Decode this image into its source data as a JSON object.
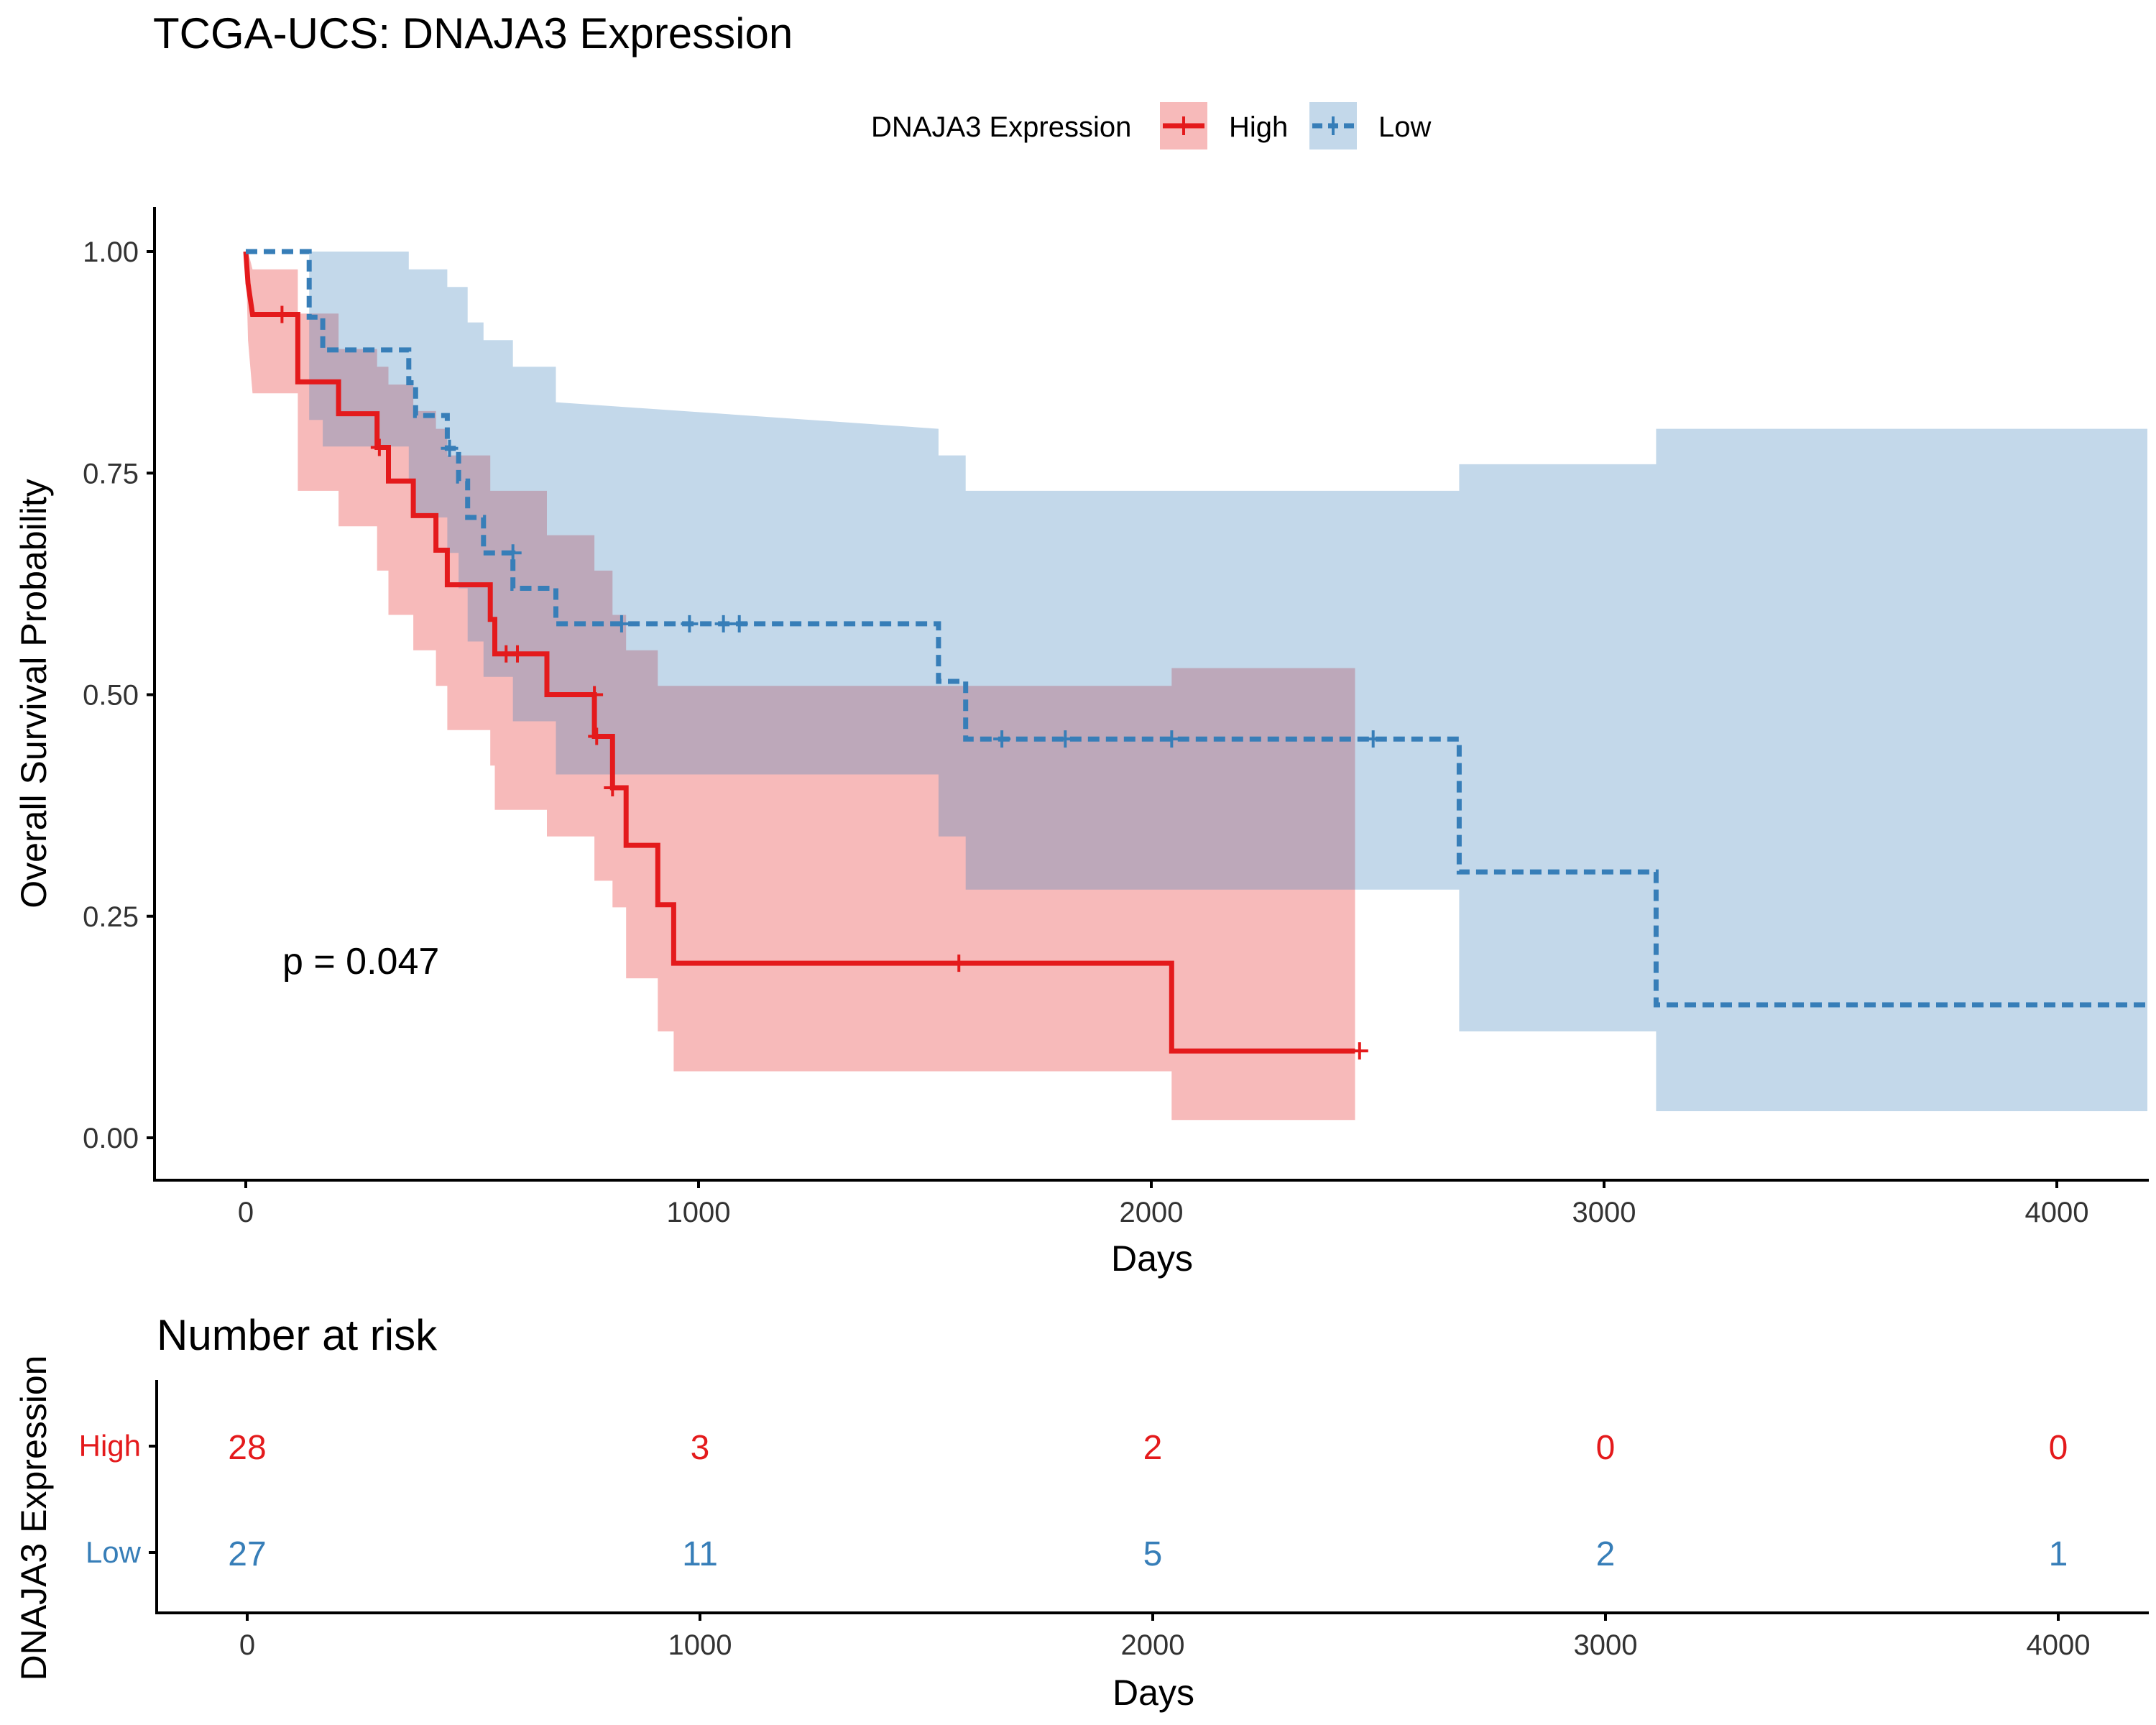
{
  "title": "TCGA-UCS: DNAJA3 Expression",
  "legend": {
    "title": "DNAJA3 Expression",
    "position": "top",
    "items": [
      {
        "label": "High",
        "color": "#e41a1c",
        "line": "solid"
      },
      {
        "label": "Low",
        "color": "#377eb8",
        "line": "dashed"
      }
    ]
  },
  "pvalue": "p = 0.047",
  "colors": {
    "high": "#e41a1c",
    "low": "#377eb8"
  },
  "chart_data": [
    {
      "type": "line",
      "subtype": "kaplan-meier",
      "xlabel": "Days",
      "ylabel": "Overall Survival Probability",
      "xlim": [
        -200,
        4200
      ],
      "ylim": [
        -0.05,
        1.05
      ],
      "x_ticks": [
        0,
        1000,
        2000,
        3000,
        4000
      ],
      "y_ticks": [
        0.0,
        0.25,
        0.5,
        0.75,
        1.0
      ],
      "y_tick_labels": [
        "0.00",
        "0.25",
        "0.50",
        "0.75",
        "1.00"
      ],
      "series": [
        {
          "name": "High",
          "color": "#e41a1c",
          "step": [
            [
              0,
              1.0
            ],
            [
              5,
              0.964
            ],
            [
              15,
              0.929
            ],
            [
              115,
              0.929
            ],
            [
              115,
              0.853
            ],
            [
              205,
              0.853
            ],
            [
              205,
              0.817
            ],
            [
              290,
              0.817
            ],
            [
              290,
              0.779
            ],
            [
              315,
              0.779
            ],
            [
              315,
              0.741
            ],
            [
              370,
              0.741
            ],
            [
              370,
              0.702
            ],
            [
              420,
              0.702
            ],
            [
              420,
              0.663
            ],
            [
              445,
              0.663
            ],
            [
              445,
              0.624
            ],
            [
              540,
              0.624
            ],
            [
              540,
              0.585
            ],
            [
              550,
              0.585
            ],
            [
              550,
              0.546
            ],
            [
              665,
              0.546
            ],
            [
              665,
              0.5
            ],
            [
              770,
              0.5
            ],
            [
              770,
              0.453
            ],
            [
              810,
              0.453
            ],
            [
              810,
              0.395
            ],
            [
              840,
              0.395
            ],
            [
              840,
              0.33
            ],
            [
              910,
              0.33
            ],
            [
              910,
              0.263
            ],
            [
              945,
              0.263
            ],
            [
              945,
              0.197
            ],
            [
              2045,
              0.197
            ],
            [
              2045,
              0.098
            ],
            [
              2450,
              0.098
            ]
          ],
          "upper": [
            [
              0,
              1.0
            ],
            [
              5,
              1.0
            ],
            [
              15,
              0.98
            ],
            [
              115,
              0.98
            ],
            [
              115,
              0.93
            ],
            [
              205,
              0.93
            ],
            [
              205,
              0.89
            ],
            [
              290,
              0.89
            ],
            [
              290,
              0.87
            ],
            [
              315,
              0.87
            ],
            [
              315,
              0.85
            ],
            [
              370,
              0.85
            ],
            [
              370,
              0.82
            ],
            [
              420,
              0.82
            ],
            [
              420,
              0.8
            ],
            [
              445,
              0.8
            ],
            [
              445,
              0.77
            ],
            [
              540,
              0.77
            ],
            [
              540,
              0.73
            ],
            [
              550,
              0.73
            ],
            [
              550,
              0.73
            ],
            [
              665,
              0.73
            ],
            [
              665,
              0.68
            ],
            [
              770,
              0.68
            ],
            [
              770,
              0.64
            ],
            [
              810,
              0.64
            ],
            [
              810,
              0.59
            ],
            [
              840,
              0.59
            ],
            [
              840,
              0.55
            ],
            [
              910,
              0.55
            ],
            [
              910,
              0.51
            ],
            [
              945,
              0.51
            ],
            [
              945,
              0.51
            ],
            [
              1530,
              0.51
            ],
            [
              1530,
              0.51
            ],
            [
              1590,
              0.51
            ],
            [
              1590,
              0.51
            ],
            [
              2045,
              0.51
            ],
            [
              2045,
              0.53
            ],
            [
              2450,
              0.53
            ]
          ],
          "lower": [
            [
              0,
              1.0
            ],
            [
              5,
              0.9
            ],
            [
              15,
              0.84
            ],
            [
              115,
              0.84
            ],
            [
              115,
              0.73
            ],
            [
              205,
              0.73
            ],
            [
              205,
              0.69
            ],
            [
              290,
              0.69
            ],
            [
              290,
              0.64
            ],
            [
              315,
              0.64
            ],
            [
              315,
              0.59
            ],
            [
              370,
              0.59
            ],
            [
              370,
              0.55
            ],
            [
              420,
              0.55
            ],
            [
              420,
              0.51
            ],
            [
              445,
              0.51
            ],
            [
              445,
              0.46
            ],
            [
              540,
              0.46
            ],
            [
              540,
              0.42
            ],
            [
              550,
              0.42
            ],
            [
              550,
              0.37
            ],
            [
              665,
              0.37
            ],
            [
              665,
              0.34
            ],
            [
              770,
              0.34
            ],
            [
              770,
              0.29
            ],
            [
              810,
              0.29
            ],
            [
              810,
              0.26
            ],
            [
              840,
              0.26
            ],
            [
              840,
              0.18
            ],
            [
              910,
              0.18
            ],
            [
              910,
              0.12
            ],
            [
              945,
              0.12
            ],
            [
              945,
              0.075
            ],
            [
              2045,
              0.075
            ],
            [
              2045,
              0.02
            ],
            [
              2450,
              0.02
            ]
          ],
          "censor": [
            [
              80,
              0.929
            ],
            [
              295,
              0.779
            ],
            [
              575,
              0.546
            ],
            [
              600,
              0.546
            ],
            [
              770,
              0.5
            ],
            [
              775,
              0.453
            ],
            [
              810,
              0.395
            ],
            [
              1575,
              0.197
            ],
            [
              2460,
              0.098
            ]
          ]
        },
        {
          "name": "Low",
          "color": "#377eb8",
          "step": [
            [
              0,
              1.0
            ],
            [
              140,
              1.0
            ],
            [
              140,
              0.926
            ],
            [
              170,
              0.926
            ],
            [
              170,
              0.889
            ],
            [
              360,
              0.889
            ],
            [
              360,
              0.852
            ],
            [
              375,
              0.852
            ],
            [
              375,
              0.815
            ],
            [
              445,
              0.815
            ],
            [
              445,
              0.778
            ],
            [
              470,
              0.778
            ],
            [
              470,
              0.741
            ],
            [
              490,
              0.741
            ],
            [
              490,
              0.7
            ],
            [
              525,
              0.7
            ],
            [
              525,
              0.66
            ],
            [
              590,
              0.66
            ],
            [
              590,
              0.62
            ],
            [
              685,
              0.62
            ],
            [
              685,
              0.58
            ],
            [
              1530,
              0.58
            ],
            [
              1530,
              0.515
            ],
            [
              1590,
              0.515
            ],
            [
              1590,
              0.45
            ],
            [
              2680,
              0.45
            ],
            [
              2680,
              0.3
            ],
            [
              3115,
              0.3
            ],
            [
              3115,
              0.15
            ],
            [
              4200,
              0.15
            ]
          ],
          "upper": [
            [
              0,
              1.0
            ],
            [
              140,
              1.0
            ],
            [
              140,
              1.0
            ],
            [
              360,
              1.0
            ],
            [
              360,
              0.98
            ],
            [
              445,
              0.98
            ],
            [
              445,
              0.96
            ],
            [
              490,
              0.96
            ],
            [
              490,
              0.92
            ],
            [
              525,
              0.92
            ],
            [
              525,
              0.9
            ],
            [
              590,
              0.9
            ],
            [
              590,
              0.87
            ],
            [
              685,
              0.87
            ],
            [
              685,
              0.83
            ],
            [
              1530,
              0.8
            ],
            [
              1530,
              0.77
            ],
            [
              1590,
              0.77
            ],
            [
              1590,
              0.73
            ],
            [
              2680,
              0.73
            ],
            [
              2680,
              0.76
            ],
            [
              3115,
              0.76
            ],
            [
              3115,
              0.8
            ],
            [
              4200,
              0.8
            ]
          ],
          "lower": [
            [
              0,
              1.0
            ],
            [
              140,
              1.0
            ],
            [
              140,
              0.81
            ],
            [
              170,
              0.81
            ],
            [
              170,
              0.78
            ],
            [
              360,
              0.78
            ],
            [
              360,
              0.74
            ],
            [
              375,
              0.74
            ],
            [
              375,
              0.7
            ],
            [
              445,
              0.7
            ],
            [
              445,
              0.66
            ],
            [
              470,
              0.66
            ],
            [
              470,
              0.62
            ],
            [
              490,
              0.62
            ],
            [
              490,
              0.56
            ],
            [
              525,
              0.56
            ],
            [
              525,
              0.52
            ],
            [
              590,
              0.52
            ],
            [
              590,
              0.47
            ],
            [
              685,
              0.47
            ],
            [
              685,
              0.41
            ],
            [
              1530,
              0.41
            ],
            [
              1530,
              0.34
            ],
            [
              1590,
              0.34
            ],
            [
              1590,
              0.28
            ],
            [
              2680,
              0.28
            ],
            [
              2680,
              0.12
            ],
            [
              3115,
              0.12
            ],
            [
              3115,
              0.03
            ],
            [
              4200,
              0.03
            ]
          ],
          "censor": [
            [
              450,
              0.778
            ],
            [
              590,
              0.66
            ],
            [
              830,
              0.58
            ],
            [
              980,
              0.58
            ],
            [
              1055,
              0.58
            ],
            [
              1090,
              0.58
            ],
            [
              1670,
              0.45
            ],
            [
              1810,
              0.45
            ],
            [
              2045,
              0.45
            ],
            [
              2490,
              0.45
            ]
          ]
        }
      ]
    },
    {
      "type": "table",
      "title": "Number at risk",
      "xlabel": "Days",
      "ylabel": "DNAJA3 Expression",
      "xlim": [
        -200,
        4200
      ],
      "x_ticks": [
        0,
        1000,
        2000,
        3000,
        4000
      ],
      "rows": [
        {
          "name": "High",
          "color": "#e41a1c",
          "values": [
            28,
            3,
            2,
            0,
            0
          ]
        },
        {
          "name": "Low",
          "color": "#377eb8",
          "values": [
            27,
            11,
            5,
            2,
            1
          ]
        }
      ]
    }
  ]
}
